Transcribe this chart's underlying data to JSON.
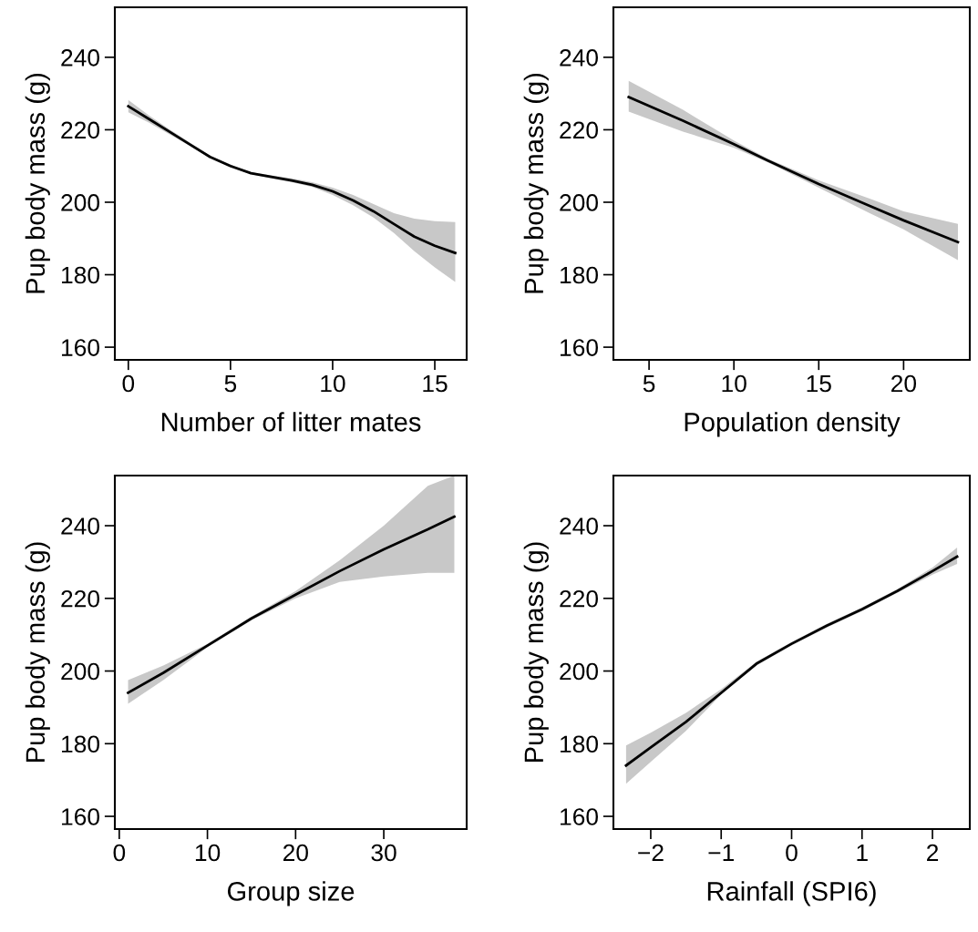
{
  "chart_data": [
    {
      "type": "line",
      "xlabel": "Number of litter mates",
      "ylabel": "Pup body mass (g)",
      "xlim": [
        -0.66,
        16.56
      ],
      "xticks": [
        0,
        5,
        10,
        15
      ],
      "ylim": [
        156.5,
        253.8
      ],
      "yticks": [
        160,
        180,
        200,
        220,
        240
      ],
      "grid": false,
      "marker": "none",
      "line_style": "solid",
      "series": [
        {
          "color": "#000000",
          "x": [
            0,
            1,
            2,
            3,
            4,
            5,
            6,
            7,
            8,
            9,
            10,
            11,
            12,
            13,
            14,
            15,
            16
          ],
          "values": [
            226.5,
            223,
            219.5,
            216,
            212.5,
            210,
            208,
            207,
            206,
            204.8,
            203,
            200.5,
            197.5,
            194,
            190.5,
            188,
            186
          ],
          "lower": [
            224.8,
            222,
            218.8,
            215.6,
            212.2,
            209.6,
            207.7,
            206.6,
            205.5,
            204.2,
            202,
            199.2,
            195.8,
            191.5,
            186.5,
            182,
            178
          ],
          "upper": [
            228.2,
            224,
            220.2,
            216.5,
            212.8,
            210.4,
            208.3,
            207.4,
            206.6,
            205.5,
            204,
            202,
            199.5,
            197,
            195.5,
            194.8,
            194.5
          ]
        }
      ]
    },
    {
      "type": "line",
      "xlabel": "Population density",
      "ylabel": "Pup body mass (g)",
      "xlim": [
        2.9,
        23.9
      ],
      "xticks": [
        5,
        10,
        15,
        20
      ],
      "ylim": [
        156.5,
        253.8
      ],
      "yticks": [
        160,
        180,
        200,
        220,
        240
      ],
      "grid": false,
      "marker": "none",
      "line_style": "solid",
      "series": [
        {
          "color": "#000000",
          "x": [
            3.8,
            7,
            10,
            12,
            15,
            18,
            20,
            23.2
          ],
          "values": [
            229,
            222.5,
            216,
            211.5,
            205,
            199,
            195,
            189
          ],
          "lower": [
            225,
            219.5,
            215,
            211,
            204,
            197,
            192.5,
            184
          ],
          "upper": [
            233.5,
            225.5,
            217,
            212,
            206,
            201,
            197.5,
            194
          ]
        }
      ]
    },
    {
      "type": "line",
      "xlabel": "Group size",
      "ylabel": "Pup body mass (g)",
      "xlim": [
        -0.5,
        39.4
      ],
      "xticks": [
        0,
        10,
        20,
        30
      ],
      "ylim": [
        156.5,
        253.8
      ],
      "yticks": [
        160,
        180,
        200,
        220,
        240
      ],
      "grid": false,
      "marker": "none",
      "line_style": "solid",
      "series": [
        {
          "color": "#000000",
          "x": [
            1,
            5,
            10,
            15,
            20,
            25,
            30,
            35,
            38
          ],
          "values": [
            194,
            199.5,
            207,
            214.5,
            221,
            227.5,
            233.5,
            239,
            242.5
          ],
          "lower": [
            191,
            197.5,
            206.5,
            214,
            220,
            224.5,
            226,
            227,
            227
          ],
          "upper": [
            197.5,
            201.5,
            207.5,
            215,
            222,
            230.5,
            240,
            251,
            253.8
          ]
        }
      ]
    },
    {
      "type": "line",
      "xlabel": "Rainfall (SPI6)",
      "ylabel": "Pup body mass (g)",
      "xlim": [
        -2.53,
        2.53
      ],
      "xticks": [
        {
          "value": -2,
          "label": "−2"
        },
        {
          "value": -1,
          "label": "−1"
        },
        0,
        1,
        2
      ],
      "ylim": [
        156.5,
        253.8
      ],
      "yticks": [
        160,
        180,
        200,
        220,
        240
      ],
      "grid": false,
      "marker": "none",
      "line_style": "solid",
      "series": [
        {
          "color": "#000000",
          "x": [
            -2.35,
            -2,
            -1.5,
            -1,
            -0.5,
            0,
            0.5,
            1,
            1.5,
            2,
            2.35
          ],
          "values": [
            174,
            179,
            186,
            194,
            202,
            207.5,
            212.5,
            217,
            222,
            227.5,
            231.5
          ],
          "lower": [
            169,
            175,
            183.5,
            193.5,
            201.5,
            207,
            212,
            216.5,
            221.5,
            226.5,
            229.5
          ],
          "upper": [
            179.5,
            183,
            188.5,
            195,
            202.5,
            208,
            213,
            217.5,
            222.5,
            228.5,
            234
          ]
        }
      ]
    }
  ]
}
